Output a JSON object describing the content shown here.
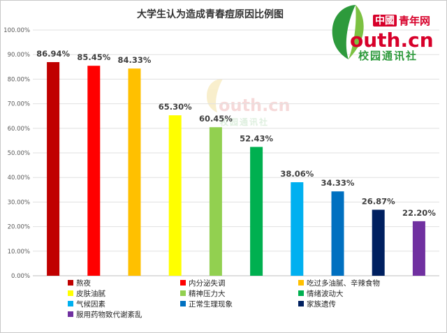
{
  "chart_data": {
    "type": "bar",
    "title": "大学生认为造成青春痘原因比例图",
    "xlabel": "",
    "ylabel": "",
    "ylim": [
      0,
      100
    ],
    "y_ticks": [
      "0.00%",
      "10.00%",
      "20.00%",
      "30.00%",
      "40.00%",
      "50.00%",
      "60.00%",
      "70.00%",
      "80.00%",
      "90.00%",
      "100.00%"
    ],
    "grid": true,
    "legend_position": "bottom",
    "categories": [
      "熬夜",
      "内分泌失调",
      "吃过多油腻、辛辣食物",
      "皮肤油腻",
      "精神压力大",
      "情绪波动大",
      "气候因素",
      "正常生理现象",
      "家族遗传",
      "服用药物致代谢紊乱"
    ],
    "values": [
      86.94,
      85.45,
      84.33,
      65.3,
      60.45,
      52.43,
      38.06,
      34.33,
      26.87,
      22.2
    ],
    "value_labels": [
      "86.94%",
      "85.45%",
      "84.33%",
      "65.30%",
      "60.45%",
      "52.43%",
      "38.06%",
      "34.33%",
      "26.87%",
      "22.20%"
    ],
    "colors": [
      "#c00000",
      "#ff0000",
      "#ffc000",
      "#ffff00",
      "#92d050",
      "#00b050",
      "#00b0f0",
      "#0070c0",
      "#002060",
      "#7030a0"
    ]
  },
  "logo": {
    "badge": "中國",
    "name": "青年网",
    "site": "outh.cn",
    "sub": "校园通讯社",
    "leaf_color": "#2d9a3c",
    "accent_color": "#d7002a"
  }
}
